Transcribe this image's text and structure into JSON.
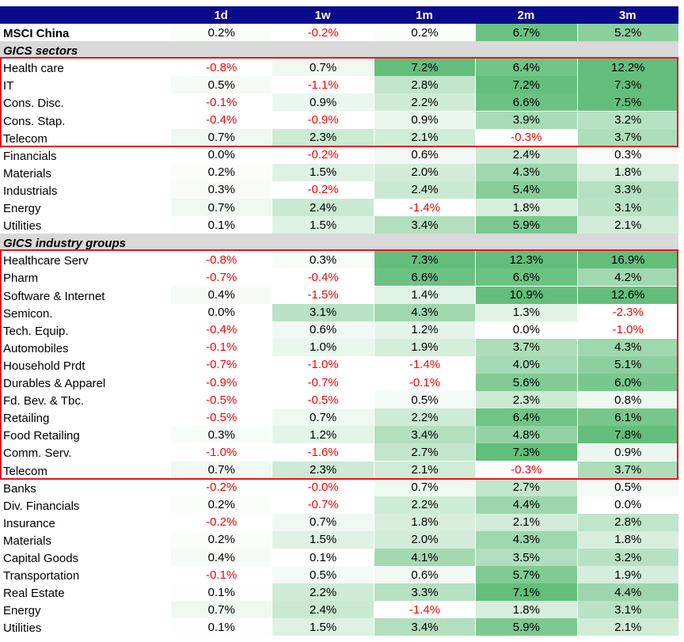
{
  "columns": [
    "1d",
    "1w",
    "1m",
    "2m",
    "3m"
  ],
  "colors": {
    "header_bg": "#0a0a8c",
    "section_bg": "#d9d9d9",
    "negative_text": "#ff0000",
    "highlight_box": "#e8141e"
  },
  "rows": [
    {
      "label": "MSCI China",
      "bold": true,
      "values": [
        "0.2%",
        "-0.2%",
        "0.2%",
        "6.7%",
        "5.2%"
      ]
    },
    {
      "section": "GICS sectors"
    },
    {
      "label": "Health care",
      "values": [
        "-0.8%",
        "0.7%",
        "7.2%",
        "6.4%",
        "12.2%"
      ]
    },
    {
      "label": "IT",
      "values": [
        "0.5%",
        "-1.1%",
        "2.8%",
        "7.2%",
        "7.3%"
      ]
    },
    {
      "label": "Cons. Disc.",
      "values": [
        "-0.1%",
        "0.9%",
        "2.2%",
        "6.6%",
        "7.5%"
      ]
    },
    {
      "label": "Cons. Stap.",
      "values": [
        "-0.4%",
        "-0.9%",
        "0.9%",
        "3.9%",
        "3.2%"
      ]
    },
    {
      "label": "Telecom",
      "values": [
        "0.7%",
        "2.3%",
        "2.1%",
        "-0.3%",
        "3.7%"
      ]
    },
    {
      "label": "Financials",
      "values": [
        "0.0%",
        "-0.2%",
        "0.6%",
        "2.4%",
        "0.3%"
      ]
    },
    {
      "label": "Materials",
      "values": [
        "0.2%",
        "1.5%",
        "2.0%",
        "4.3%",
        "1.8%"
      ]
    },
    {
      "label": "Industrials",
      "values": [
        "0.3%",
        "-0.2%",
        "2.4%",
        "5.4%",
        "3.3%"
      ]
    },
    {
      "label": "Energy",
      "values": [
        "0.7%",
        "2.4%",
        "-1.4%",
        "1.8%",
        "3.1%"
      ]
    },
    {
      "label": "Utilities",
      "values": [
        "0.1%",
        "1.5%",
        "3.4%",
        "5.9%",
        "2.1%"
      ]
    },
    {
      "section": "GICS industry groups"
    },
    {
      "label": "Healthcare Serv",
      "values": [
        "-0.8%",
        "0.3%",
        "7.3%",
        "12.3%",
        "16.9%"
      ]
    },
    {
      "label": "Pharm",
      "values": [
        "-0.7%",
        "-0.4%",
        "6.6%",
        "6.6%",
        "4.2%"
      ]
    },
    {
      "label": "Software & Internet",
      "values": [
        "0.4%",
        "-1.5%",
        "1.4%",
        "10.9%",
        "12.6%"
      ]
    },
    {
      "label": "Semicon.",
      "values": [
        "0.0%",
        "3.1%",
        "4.3%",
        "1.3%",
        "-2.3%"
      ]
    },
    {
      "label": "Tech. Equip.",
      "values": [
        "-0.4%",
        "0.6%",
        "1.2%",
        "0.0%",
        "-1.0%"
      ]
    },
    {
      "label": "Automobiles",
      "values": [
        "-0.1%",
        "1.0%",
        "1.9%",
        "3.7%",
        "4.3%"
      ]
    },
    {
      "label": "Household Prdt",
      "values": [
        "-0.7%",
        "-1.0%",
        "-1.4%",
        "4.0%",
        "5.1%"
      ]
    },
    {
      "label": "Durables & Apparel",
      "values": [
        "-0.9%",
        "-0.7%",
        "-0.1%",
        "5.6%",
        "6.0%"
      ]
    },
    {
      "label": "Fd. Bev. & Tbc.",
      "values": [
        "-0.5%",
        "-0.5%",
        "0.5%",
        "2.3%",
        "0.8%"
      ]
    },
    {
      "label": "Retailing",
      "values": [
        "-0.5%",
        "0.7%",
        "2.2%",
        "6.4%",
        "6.1%"
      ]
    },
    {
      "label": "Food Retailing",
      "values": [
        "0.3%",
        "1.2%",
        "3.4%",
        "4.8%",
        "7.8%"
      ]
    },
    {
      "label": "Comm. Serv.",
      "values": [
        "-1.0%",
        "-1.6%",
        "2.7%",
        "7.3%",
        "0.9%"
      ]
    },
    {
      "label": "Telecom",
      "values": [
        "0.7%",
        "2.3%",
        "2.1%",
        "-0.3%",
        "3.7%"
      ]
    },
    {
      "label": "Banks",
      "values": [
        "-0.2%",
        "-0.0%",
        "0.7%",
        "2.7%",
        "0.5%"
      ]
    },
    {
      "label": "Div. Financials",
      "values": [
        "0.2%",
        "-0.7%",
        "2.2%",
        "4.4%",
        "0.0%"
      ]
    },
    {
      "label": "Insurance",
      "values": [
        "-0.2%",
        "0.7%",
        "1.8%",
        "2.1%",
        "2.8%"
      ]
    },
    {
      "label": "Materials",
      "values": [
        "0.2%",
        "1.5%",
        "2.0%",
        "4.3%",
        "1.8%"
      ]
    },
    {
      "label": "Capital Goods",
      "values": [
        "0.4%",
        "0.1%",
        "4.1%",
        "3.5%",
        "3.2%"
      ]
    },
    {
      "label": "Transportation",
      "values": [
        "-0.1%",
        "0.5%",
        "0.6%",
        "5.7%",
        "1.9%"
      ]
    },
    {
      "label": "Real Estate",
      "values": [
        "0.1%",
        "2.2%",
        "3.3%",
        "7.1%",
        "4.4%"
      ]
    },
    {
      "label": "Energy",
      "values": [
        "0.7%",
        "2.4%",
        "-1.4%",
        "1.8%",
        "3.1%"
      ]
    },
    {
      "label": "Utilities",
      "values": [
        "0.1%",
        "1.5%",
        "3.4%",
        "5.9%",
        "2.1%"
      ]
    }
  ]
}
